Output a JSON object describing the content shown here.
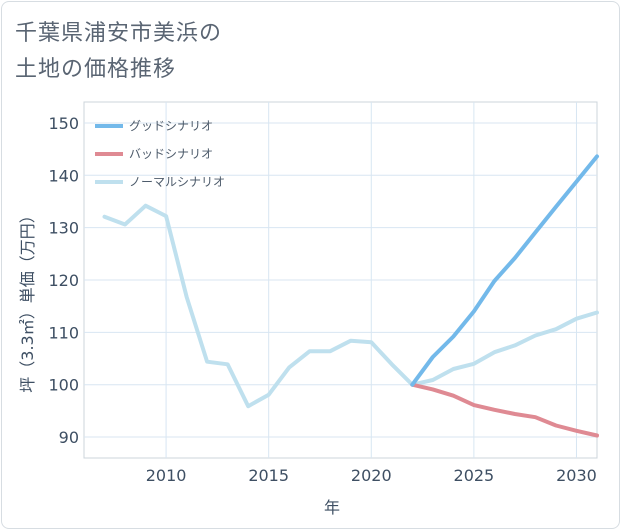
{
  "title_lines": [
    "千葉県浦安市美浜の",
    "土地の価格推移"
  ],
  "chart_data": {
    "type": "line",
    "xlabel": "年",
    "ylabel": "坪（3.3㎡）単価（万円）",
    "xlim": [
      2006,
      2031
    ],
    "ylim": [
      86,
      154
    ],
    "xticks": [
      2010,
      2015,
      2020,
      2025,
      2030
    ],
    "yticks": [
      90,
      100,
      110,
      120,
      130,
      140,
      150
    ],
    "grid": true,
    "legend_position": "top-left",
    "series": [
      {
        "name": "グッドシナリオ",
        "color": "#73b9ea",
        "x": [
          2022,
          2023,
          2024,
          2025,
          2026,
          2027,
          2028,
          2029,
          2030,
          2031
        ],
        "y": [
          100.0,
          105.3,
          109.2,
          114.0,
          119.8,
          124.2,
          129.1,
          134.0,
          138.8,
          143.6
        ]
      },
      {
        "name": "バッドシナリオ",
        "color": "#df8a93",
        "x": [
          2022,
          2023,
          2024,
          2025,
          2026,
          2027,
          2028,
          2029,
          2030,
          2031
        ],
        "y": [
          100.0,
          99.1,
          97.9,
          96.1,
          95.2,
          94.4,
          93.8,
          92.2,
          91.2,
          90.3
        ]
      },
      {
        "name": "ノーマルシナリオ",
        "color": "#bfe0ee",
        "x": [
          2007,
          2008,
          2009,
          2010,
          2011,
          2012,
          2013,
          2014,
          2015,
          2016,
          2017,
          2018,
          2019,
          2020,
          2021,
          2022,
          2023,
          2024,
          2025,
          2026,
          2027,
          2028,
          2029,
          2030,
          2031
        ],
        "y": [
          132.1,
          130.6,
          134.2,
          132.2,
          116.8,
          104.4,
          103.9,
          95.9,
          98.1,
          103.3,
          106.4,
          106.4,
          108.4,
          108.1,
          103.9,
          100.0,
          100.9,
          103.0,
          104.0,
          106.2,
          107.5,
          109.4,
          110.6,
          112.6,
          113.8
        ]
      }
    ]
  }
}
